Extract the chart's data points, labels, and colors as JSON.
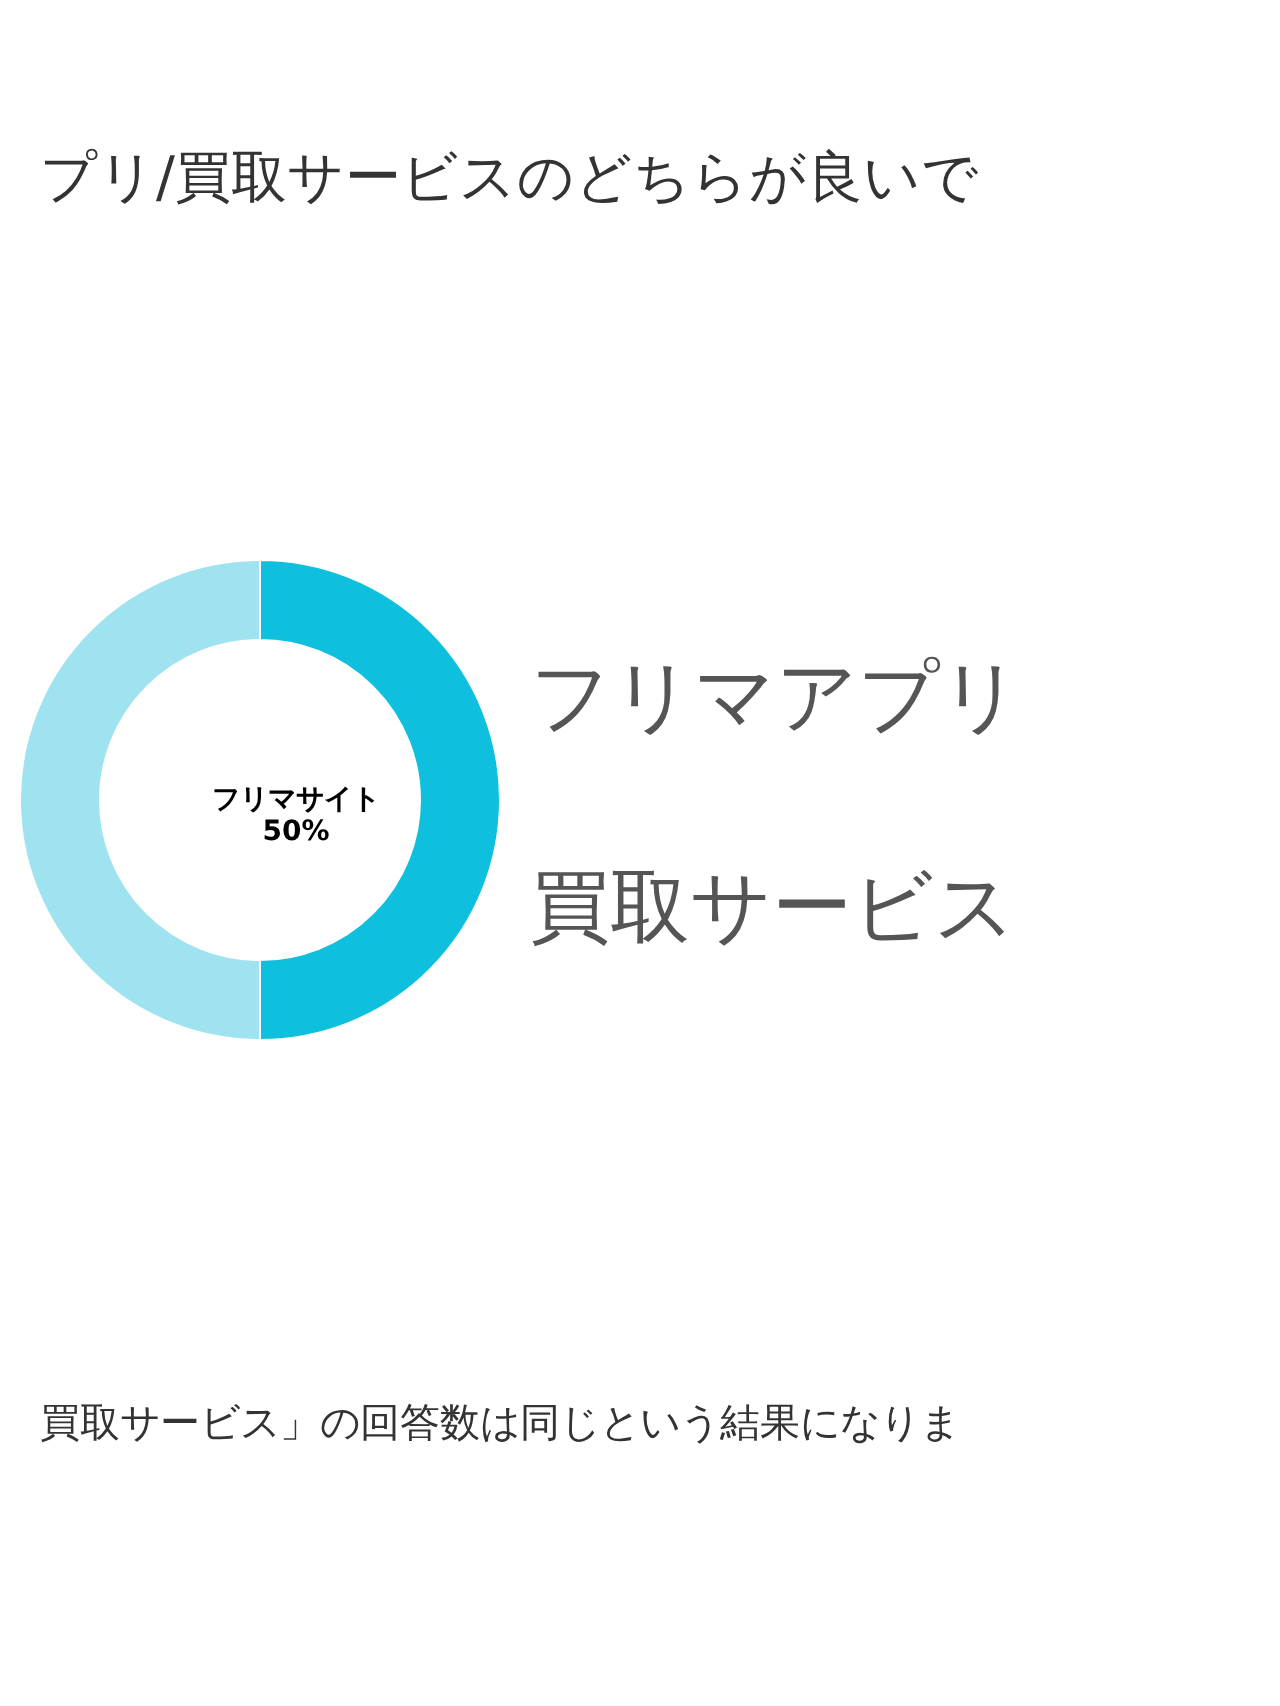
{
  "chart_data": {
    "type": "donut",
    "title": "プリ/買取サービスのどちらが良いで",
    "categories": [
      "フリマサイト",
      null
    ],
    "values": [
      50,
      50
    ],
    "value_labels": [
      "50%",
      null
    ],
    "colors": [
      "#0fbfde",
      "#9fe3f0"
    ],
    "annotations": [
      "フリマアプリ",
      "買取サービス",
      "買取サービス」の回答数は同じという結果になりま"
    ]
  }
}
